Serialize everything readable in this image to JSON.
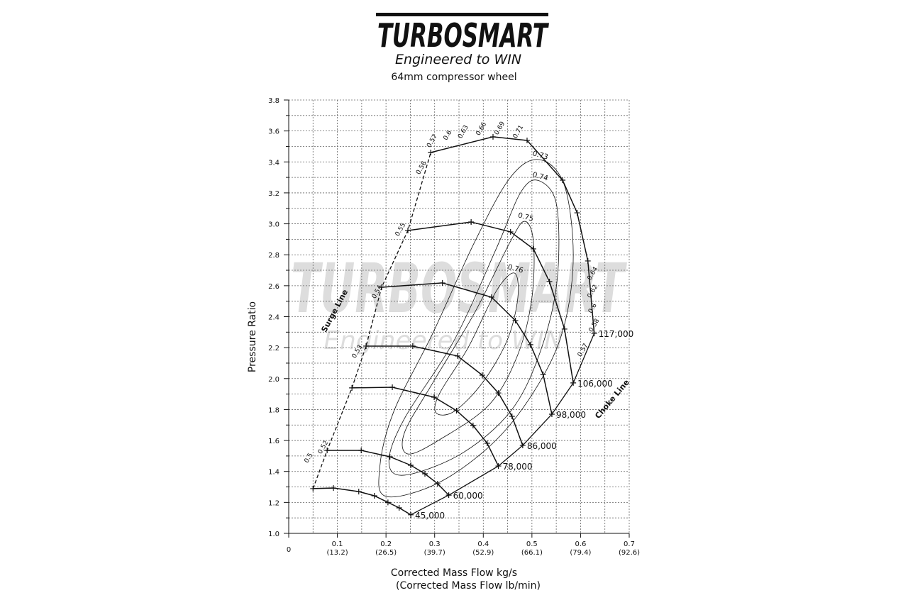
{
  "header": {
    "logo": "TURBOSMART",
    "tagline": "Engineered to WIN"
  },
  "watermark": {
    "logo": "TURBOSMART",
    "tagline": "Engineered to WIN"
  },
  "chart_data": {
    "type": "compressor-map",
    "title": "64mm compressor wheel",
    "x_label": "Corrected Mass Flow kg/s",
    "x_label_secondary": "(Corrected Mass Flow lb/min)",
    "y_label": "Pressure Ratio",
    "xlim": [
      0,
      0.7
    ],
    "ylim": [
      1.0,
      3.8
    ],
    "xticks": [
      0,
      0.1,
      0.2,
      0.3,
      0.4,
      0.5,
      0.6,
      0.7
    ],
    "xticks_secondary": [
      null,
      "(13.2)",
      "(26.5)",
      "(39.7)",
      "(52.9)",
      "(66.1)",
      "(79.4)",
      "(92.6)"
    ],
    "yticks": [
      {
        "value": 1.0,
        "label": "1.0"
      },
      1.2,
      1.4,
      1.6,
      1.8,
      {
        "value": 2.0,
        "label": "2.0"
      },
      2.2,
      2.4,
      2.6,
      2.8,
      {
        "value": 3.0,
        "label": "3.0"
      },
      3.2,
      3.4,
      3.6,
      3.8
    ],
    "grid": true,
    "line_color": "#111111",
    "speed_lines": [
      {
        "name": "45,000",
        "x": [
          0.05,
          0.092,
          0.144,
          0.176,
          0.204,
          0.227,
          0.251
        ],
        "y": [
          1.289,
          1.293,
          1.27,
          1.243,
          1.2,
          1.165,
          1.12
        ]
      },
      {
        "name": "60,000",
        "x": [
          0.079,
          0.149,
          0.208,
          0.251,
          0.28,
          0.306,
          0.329
        ],
        "y": [
          1.536,
          1.536,
          1.495,
          1.44,
          1.385,
          1.321,
          1.247
        ]
      },
      {
        "name": "78,000",
        "x": [
          0.13,
          0.213,
          0.299,
          0.345,
          0.379,
          0.408,
          0.431
        ],
        "y": [
          1.94,
          1.944,
          1.88,
          1.793,
          1.697,
          1.582,
          1.435
        ]
      },
      {
        "name": "86,000",
        "x": [
          0.159,
          0.255,
          0.347,
          0.398,
          0.431,
          0.459,
          0.481
        ],
        "y": [
          2.21,
          2.21,
          2.146,
          2.022,
          1.907,
          1.756,
          1.568
        ]
      },
      {
        "name": "98,000",
        "x": [
          0.191,
          0.316,
          0.417,
          0.466,
          0.497,
          0.523,
          0.541
        ],
        "y": [
          2.59,
          2.618,
          2.526,
          2.375,
          2.219,
          2.027,
          1.77
        ]
      },
      {
        "name": "106,000",
        "x": [
          0.245,
          0.375,
          0.456,
          0.503,
          0.536,
          0.567,
          0.585
        ],
        "y": [
          2.957,
          3.012,
          2.948,
          2.838,
          2.627,
          2.32,
          1.972
        ]
      },
      {
        "name": "117,000",
        "x": [
          0.292,
          0.42,
          0.49,
          0.563,
          0.593,
          0.615,
          0.628
        ],
        "y": [
          3.461,
          3.562,
          3.539,
          3.282,
          3.071,
          2.76,
          2.292
        ]
      }
    ],
    "efficiency_contours": [
      {
        "efficiency": 0.73,
        "x": [
          0.515,
          0.566,
          0.585,
          0.566,
          0.515,
          0.427,
          0.31,
          0.201,
          0.187,
          0.216,
          0.296,
          0.383,
          0.456
        ],
        "y": [
          3.415,
          3.255,
          2.797,
          2.338,
          1.972,
          1.605,
          1.33,
          1.238,
          1.422,
          1.788,
          2.292,
          2.888,
          3.301
        ]
      },
      {
        "efficiency": 0.74,
        "x": [
          0.515,
          0.551,
          0.551,
          0.515,
          0.456,
          0.354,
          0.238,
          0.206,
          0.238,
          0.34,
          0.427,
          0.478
        ],
        "y": [
          3.278,
          3.117,
          2.613,
          2.155,
          1.788,
          1.513,
          1.376,
          1.467,
          1.742,
          2.247,
          2.842,
          3.209
        ]
      },
      {
        "efficiency": 0.75,
        "x": [
          0.485,
          0.503,
          0.5,
          0.471,
          0.413,
          0.31,
          0.245,
          0.238,
          0.296,
          0.383,
          0.456
        ],
        "y": [
          3.016,
          2.888,
          2.522,
          2.155,
          1.834,
          1.605,
          1.513,
          1.651,
          1.972,
          2.43,
          2.888
        ]
      },
      {
        "efficiency": 0.76,
        "x": [
          0.464,
          0.471,
          0.449,
          0.398,
          0.34,
          0.303,
          0.31,
          0.369,
          0.427
        ],
        "y": [
          2.682,
          2.522,
          2.247,
          1.972,
          1.788,
          1.779,
          1.903,
          2.201,
          2.567
        ]
      }
    ],
    "annotations": [
      {
        "text": "0.5",
        "x": 0.044,
        "y": 1.481
      },
      {
        "text": "0.52",
        "x": 0.074,
        "y": 1.55
      },
      {
        "text": "0.53",
        "x": 0.144,
        "y": 2.169
      },
      {
        "text": "0.54",
        "x": 0.185,
        "y": 2.554
      },
      {
        "text": "0.55",
        "x": 0.233,
        "y": 2.957
      },
      {
        "text": "0.56",
        "x": 0.276,
        "y": 3.356
      },
      {
        "text": "0.57",
        "x": 0.298,
        "y": 3.53
      },
      {
        "text": "0.6",
        "x": 0.33,
        "y": 3.566
      },
      {
        "text": "0.63",
        "x": 0.362,
        "y": 3.589
      },
      {
        "text": "0.66",
        "x": 0.399,
        "y": 3.608
      },
      {
        "text": "0.69",
        "x": 0.437,
        "y": 3.612
      },
      {
        "text": "0.71",
        "x": 0.475,
        "y": 3.589
      },
      {
        "text": "0.64",
        "x": 0.628,
        "y": 2.673
      },
      {
        "text": "0.62",
        "x": 0.628,
        "y": 2.558
      },
      {
        "text": "0.6",
        "x": 0.628,
        "y": 2.448
      },
      {
        "text": "0.58",
        "x": 0.631,
        "y": 2.338
      },
      {
        "text": "0.57",
        "x": 0.608,
        "y": 2.178
      }
    ],
    "line_labels": [
      {
        "text": "Surge Line",
        "x": 0.099,
        "y": 2.43
      },
      {
        "text": "Choke Line",
        "x": 0.669,
        "y": 1.857
      }
    ]
  }
}
